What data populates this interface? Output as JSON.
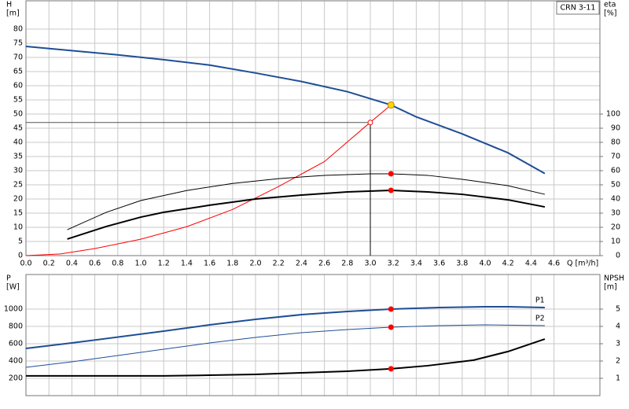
{
  "chart_data": [
    {
      "type": "line",
      "title": "CRN 3-11",
      "xlabel": "Q [m³/h]",
      "ylabel": "H",
      "yunit": "[m]",
      "y2label": "eta",
      "y2unit": "[%]",
      "xlim": [
        0,
        5
      ],
      "ylim": [
        0,
        90
      ],
      "y2lim": [
        0,
        180
      ],
      "grid": true,
      "xticks": [
        {
          "value": 0,
          "label": "0.0"
        },
        0.2,
        0.4,
        0.6,
        0.8,
        {
          "value": 1,
          "label": "1.0"
        },
        1.2,
        1.4,
        1.6,
        1.8,
        {
          "value": 2,
          "label": "2.0"
        },
        2.2,
        2.4,
        2.6,
        2.8,
        {
          "value": 3,
          "label": "3.0"
        },
        3.2,
        3.4,
        3.6,
        3.8,
        {
          "value": 4,
          "label": "4.0"
        },
        4.2,
        4.4,
        4.6
      ],
      "yticks": [
        0,
        5,
        10,
        15,
        20,
        25,
        30,
        35,
        40,
        45,
        50,
        55,
        60,
        65,
        70,
        75,
        80
      ],
      "y2ticks": [
        0,
        10,
        20,
        30,
        40,
        50,
        60,
        70,
        80,
        90,
        100
      ],
      "marker_color": "#ff0000",
      "series": [
        {
          "color": "#1f4e96",
          "style": "thick",
          "x": [
            0,
            0.4,
            0.8,
            1.2,
            1.6,
            2.0,
            2.4,
            2.8,
            3.18,
            3.4,
            3.8,
            4.2,
            4.52
          ],
          "values": [
            73.9,
            72.4,
            70.9,
            69.2,
            67.3,
            64.5,
            61.5,
            57.9,
            53.2,
            49,
            43,
            36.3,
            29
          ]
        },
        {
          "color": "#ff0000",
          "style": "thin",
          "x": [
            0,
            0.3,
            0.6,
            1.0,
            1.4,
            1.8,
            2.2,
            2.6,
            3.0,
            3.18
          ],
          "values": [
            0,
            0.6,
            2.5,
            5.8,
            10.2,
            16.3,
            24.4,
            33.2,
            47.1,
            53.2
          ]
        },
        {
          "color": "#000000",
          "style": "thin",
          "axis": "y2",
          "x": [
            0.36,
            0.7,
            1.0,
            1.4,
            1.8,
            2.2,
            2.6,
            3.0,
            3.18,
            3.5,
            3.8,
            4.2,
            4.52
          ],
          "values": [
            18.3,
            30.6,
            38.9,
            46,
            51,
            54.4,
            56.7,
            57.8,
            57.8,
            56.7,
            53.9,
            49.4,
            43.3
          ]
        },
        {
          "color": "#000000",
          "style": "thick",
          "axis": "y2",
          "x": [
            0.36,
            0.7,
            1.0,
            1.2,
            1.6,
            2.0,
            2.4,
            2.8,
            3.18,
            3.5,
            3.8,
            4.2,
            4.52
          ],
          "values": [
            11.7,
            20.6,
            27.2,
            30.6,
            35.6,
            40,
            42.8,
            45,
            46.1,
            45,
            43.3,
            39.4,
            34.4
          ]
        }
      ],
      "duty_point": {
        "x": 3.18,
        "y": 53.2,
        "color": "#ffd700"
      },
      "required_point": {
        "x": 3.0,
        "y": 47
      }
    },
    {
      "type": "line",
      "ylabel": "P",
      "yunit": "[W]",
      "y2label": "NPSH",
      "y2unit": "[m]",
      "xlim": [
        0,
        5
      ],
      "ylim": [
        0,
        1400
      ],
      "y2lim": [
        0,
        7
      ],
      "grid": true,
      "xtick_labels": false,
      "xticks": [
        0,
        0.2,
        0.4,
        0.6,
        0.8,
        1,
        1.2,
        1.4,
        1.6,
        1.8,
        2,
        2.2,
        2.4,
        2.6,
        2.8,
        3,
        3.2,
        3.4,
        3.6,
        3.8,
        4,
        4.2,
        4.4,
        4.6
      ],
      "yticks": [
        200,
        400,
        600,
        800,
        1000
      ],
      "y2ticks": [
        1,
        2,
        3,
        4,
        5
      ],
      "marker_color": "#ff0000",
      "marker_x": 3.18,
      "series": [
        {
          "name": "P1",
          "color": "#1f4e96",
          "style": "thick",
          "x": [
            0,
            0.4,
            1.2,
            1.6,
            2.0,
            2.4,
            2.8,
            3.18,
            3.6,
            4.0,
            4.2,
            4.52
          ],
          "values": [
            545,
            609,
            745,
            818,
            882,
            936,
            973,
            1000,
            1018,
            1027,
            1027,
            1018
          ]
        },
        {
          "name": "P2",
          "color": "#1f4e96",
          "style": "thin",
          "x": [
            0,
            0.4,
            1.2,
            1.6,
            2.0,
            2.4,
            2.8,
            3.18,
            3.6,
            4.0,
            4.52
          ],
          "values": [
            327,
            391,
            536,
            609,
            673,
            727,
            764,
            791,
            809,
            818,
            809
          ]
        },
        {
          "color": "#000000",
          "style": "thick",
          "axis": "y2",
          "x": [
            0,
            1.2,
            1.6,
            2.0,
            2.4,
            2.8,
            3.18,
            3.5,
            3.9,
            4.2,
            4.52
          ],
          "values": [
            1.14,
            1.14,
            1.18,
            1.23,
            1.32,
            1.41,
            1.55,
            1.73,
            2.05,
            2.55,
            3.27
          ]
        }
      ]
    }
  ]
}
